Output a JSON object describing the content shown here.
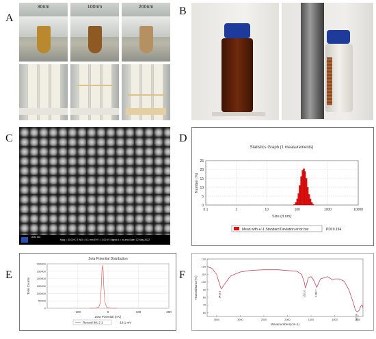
{
  "panel_labels": [
    "A",
    "B",
    "C",
    "D",
    "E",
    "F"
  ],
  "panelA": {
    "tubes": [
      {
        "label": "30nm",
        "color": "#b8892e"
      },
      {
        "label": "100nm",
        "color": "#8e5a22"
      },
      {
        "label": "200nm",
        "color": "#b49063"
      }
    ],
    "test_line_color": "#d8c38a"
  },
  "panelB": {
    "vial_left_liquid": "#5a1d08",
    "cap_color": "#1e3b9c"
  },
  "panelC": {
    "scalebar_text": "200 nm",
    "info_text": "Mag = 30.00 K X    WD = 5.1 mm    EHT = 3.00 kV    Signal A = InLens    Date :12 May 2022"
  },
  "chart_data": [
    {
      "type": "bar",
      "title": "Statistics Graph (1 measurements)",
      "xlabel": "Size (d.nm)",
      "ylabel": "Number (%)",
      "x_scale": "log",
      "xlim": [
        0.1,
        10000
      ],
      "ylim": [
        0,
        25
      ],
      "x_ticks": [
        "0.1",
        "1",
        "10",
        "100",
        "1000",
        "10000"
      ],
      "y_ticks": [
        "0",
        "5",
        "10",
        "15",
        "20",
        "25"
      ],
      "bar_color": "#e01010",
      "legend": "Mean with +/-1 Standard Deviation error bar",
      "pdi": "PDI:0.194",
      "bins_x": [
        80,
        90,
        100,
        110,
        120,
        135,
        150,
        165,
        180,
        200,
        220,
        245,
        270,
        300,
        330
      ],
      "values": [
        0.3,
        1.5,
        3.5,
        6.5,
        11,
        16,
        19.5,
        20.5,
        19,
        15,
        10,
        6,
        3.5,
        1.5,
        0.5
      ]
    },
    {
      "type": "line",
      "title": "Zeta Potential Distribution",
      "xlabel": "Zeta Potential (mV)",
      "ylabel": "Total Counts",
      "xlim": [
        -200,
        200
      ],
      "ylim": [
        0,
        300000
      ],
      "x_ticks": [
        "-100",
        "0",
        "100",
        "200"
      ],
      "y_ticks": [
        "0",
        "50000",
        "100000",
        "150000",
        "200000",
        "250000",
        "300000"
      ],
      "series": [
        {
          "name": "Record 98: 2 1",
          "x": [
            -60,
            -40,
            -30,
            -25,
            -22,
            -20,
            -18.1,
            -16,
            -14,
            -10,
            -4,
            10,
            30
          ],
          "y": [
            0,
            1000,
            8000,
            40000,
            150000,
            250000,
            290000,
            260000,
            150000,
            40000,
            5000,
            500,
            0
          ]
        }
      ],
      "annotation": "-18.1 mV",
      "line_color": "#e07070"
    },
    {
      "type": "line",
      "xlabel": "Wavenumbers(cm-1)",
      "ylabel": "Transmittance(%)",
      "xlim": [
        3700,
        400
      ],
      "ylim": [
        55,
        130
      ],
      "y_ticks": [
        "60",
        "70",
        "80",
        "90",
        "100",
        "110",
        "120",
        "130"
      ],
      "x_ticks": [
        "3500",
        "3000",
        "2500",
        "2000",
        "1500",
        "1000",
        "500"
      ],
      "series": [
        {
          "x": [
            3700,
            3600,
            3500,
            3450,
            3420,
            3400,
            3300,
            3200,
            3000,
            2800,
            2500,
            2200,
            2000,
            1800,
            1700,
            1640,
            1620,
            1600,
            1560,
            1500,
            1450,
            1400,
            1380,
            1300,
            1200,
            1150,
            1100,
            1050,
            1000,
            900,
            800,
            700,
            600,
            560,
            520,
            480,
            450,
            420,
            400
          ],
          "y": [
            120,
            118,
            110,
            100,
            94,
            91,
            100,
            108,
            113,
            115,
            116,
            116,
            115,
            114,
            110,
            99,
            92,
            96,
            105,
            107,
            103,
            96,
            93,
            104,
            106,
            107,
            105,
            103,
            104,
            104,
            101,
            90,
            72,
            63,
            61,
            63,
            68,
            70,
            66
          ]
        }
      ],
      "peak_labels": [
        "3432.5",
        "1631.6",
        "1384.7",
        "562.38"
      ],
      "line_color": "#c04858"
    }
  ]
}
